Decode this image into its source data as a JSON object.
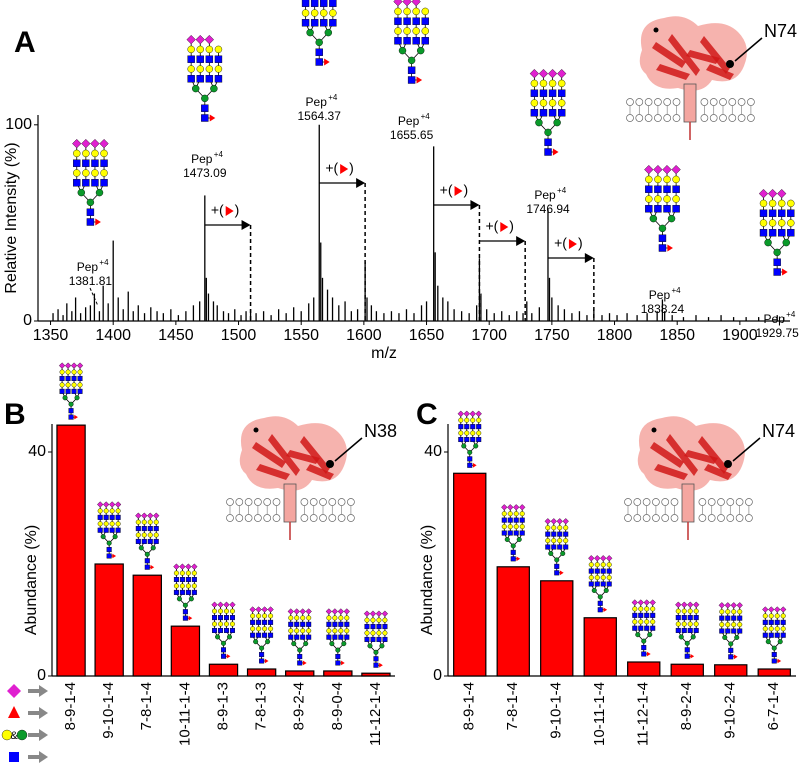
{
  "chart_data": [
    {
      "type": "spectrum",
      "panel": "A",
      "site": "N74",
      "xlabel": "m/z",
      "ylabel": "Relative Intensity (%)",
      "color": "#000000",
      "x": [
        1352,
        1356,
        1360,
        1363,
        1367,
        1370,
        1374,
        1378,
        1381.8,
        1385,
        1389,
        1392,
        1396,
        1400,
        1404,
        1408,
        1412,
        1416,
        1420,
        1425,
        1430,
        1435,
        1440,
        1446,
        1452,
        1458,
        1464,
        1469,
        1473.1,
        1474.3,
        1476,
        1480,
        1483,
        1488,
        1492,
        1497,
        1502,
        1506,
        1509.6,
        1514,
        1520,
        1526,
        1532,
        1538,
        1544,
        1550,
        1556,
        1560,
        1564.4,
        1565.6,
        1567,
        1571,
        1575,
        1580,
        1585,
        1590,
        1595,
        1601,
        1602.5,
        1606,
        1610,
        1616,
        1622,
        1628,
        1634,
        1640,
        1646,
        1650,
        1655.7,
        1656.9,
        1659,
        1663,
        1667,
        1672,
        1678,
        1684,
        1690,
        1692.2,
        1693.4,
        1698,
        1704,
        1710,
        1716,
        1722,
        1727,
        1730,
        1734,
        1740,
        1746.9,
        1748.1,
        1750,
        1755,
        1760,
        1766,
        1772,
        1778,
        1783.5,
        1790,
        1796,
        1802,
        1810,
        1818,
        1826,
        1834,
        1838.2,
        1840,
        1846,
        1855,
        1865,
        1875,
        1885,
        1895,
        1905,
        1915,
        1929.8,
        1935
      ],
      "values": [
        4,
        6,
        3,
        9,
        5,
        12,
        4,
        7,
        8,
        14,
        5,
        18,
        9,
        41,
        12,
        6,
        15,
        5,
        8,
        4,
        7,
        5,
        4,
        6,
        3,
        5,
        8,
        10,
        64,
        22,
        14,
        10,
        8,
        5,
        4,
        6,
        3,
        5,
        6,
        4,
        5,
        3,
        6,
        4,
        7,
        5,
        9,
        12,
        100,
        40,
        22,
        16,
        12,
        8,
        10,
        5,
        6,
        30,
        12,
        8,
        5,
        4,
        5,
        4,
        6,
        4,
        8,
        10,
        89,
        35,
        18,
        12,
        10,
        6,
        5,
        4,
        8,
        32,
        14,
        6,
        4,
        5,
        3,
        5,
        4,
        10,
        4,
        7,
        57,
        22,
        12,
        8,
        6,
        4,
        5,
        3,
        6,
        3,
        4,
        3,
        4,
        3,
        4,
        5,
        11,
        5,
        3,
        2,
        3,
        2,
        3,
        2,
        2,
        2,
        3,
        2
      ],
      "xlim": [
        1340,
        1940
      ],
      "ylim": [
        0,
        105
      ],
      "xticks": [
        1350,
        1400,
        1450,
        1500,
        1550,
        1600,
        1650,
        1700,
        1750,
        1800,
        1850,
        1900
      ],
      "yticks": [
        0,
        100
      ],
      "annotations": [
        {
          "label": "Pep",
          "charge": "+4",
          "value": 1381.81
        },
        {
          "label": "Pep",
          "charge": "+4",
          "value": 1473.09
        },
        {
          "label": "Pep",
          "charge": "+4",
          "value": 1564.37
        },
        {
          "label": "Pep",
          "charge": "+4",
          "value": 1655.65
        },
        {
          "label": "Pep",
          "charge": "+4",
          "value": 1746.94
        },
        {
          "label": "Pep",
          "charge": "+4",
          "value": 1838.24
        },
        {
          "label": "Pep",
          "charge": "+4",
          "value": 1929.75
        }
      ],
      "shift_label": [
        "+(",
        ")"
      ],
      "shifts": [
        {
          "from": 1473.09,
          "to": 1509.6
        },
        {
          "from": 1564.37,
          "to": 1601
        },
        {
          "from": 1655.65,
          "to": 1692.2
        },
        {
          "from": 1692.2,
          "to": 1728.7
        },
        {
          "from": 1746.94,
          "to": 1783.5
        }
      ]
    },
    {
      "type": "bar",
      "panel": "B",
      "site": "N38",
      "ylabel": "Abundance (%)",
      "color": "#ff0000",
      "legend_and": "&",
      "categories": [
        "8-9-1-4",
        "9-10-1-4",
        "7-8-1-4",
        "10-11-1-4",
        "8-9-1-3",
        "7-8-1-3",
        "8-9-2-4",
        "8-9-0-4",
        "11-12-1-4"
      ],
      "values": [
        44.8,
        20,
        18,
        8.9,
        2.1,
        1.25,
        0.9,
        0.9,
        0.5
      ],
      "ylim": [
        0,
        45
      ],
      "yticks": [
        0,
        40
      ]
    },
    {
      "type": "bar",
      "panel": "C",
      "site": "N74",
      "ylabel": "Abundance (%)",
      "color": "#ff0000",
      "categories": [
        "8-9-1-4",
        "7-8-1-4",
        "9-10-1-4",
        "10-11-1-4",
        "11-12-1-4",
        "8-9-2-4",
        "9-10-2-4",
        "6-7-1-4"
      ],
      "values": [
        36.2,
        19.5,
        17,
        10.4,
        2.5,
        2.1,
        2.0,
        1.25
      ],
      "ylim": [
        0,
        45
      ],
      "yticks": [
        0,
        40
      ]
    }
  ]
}
